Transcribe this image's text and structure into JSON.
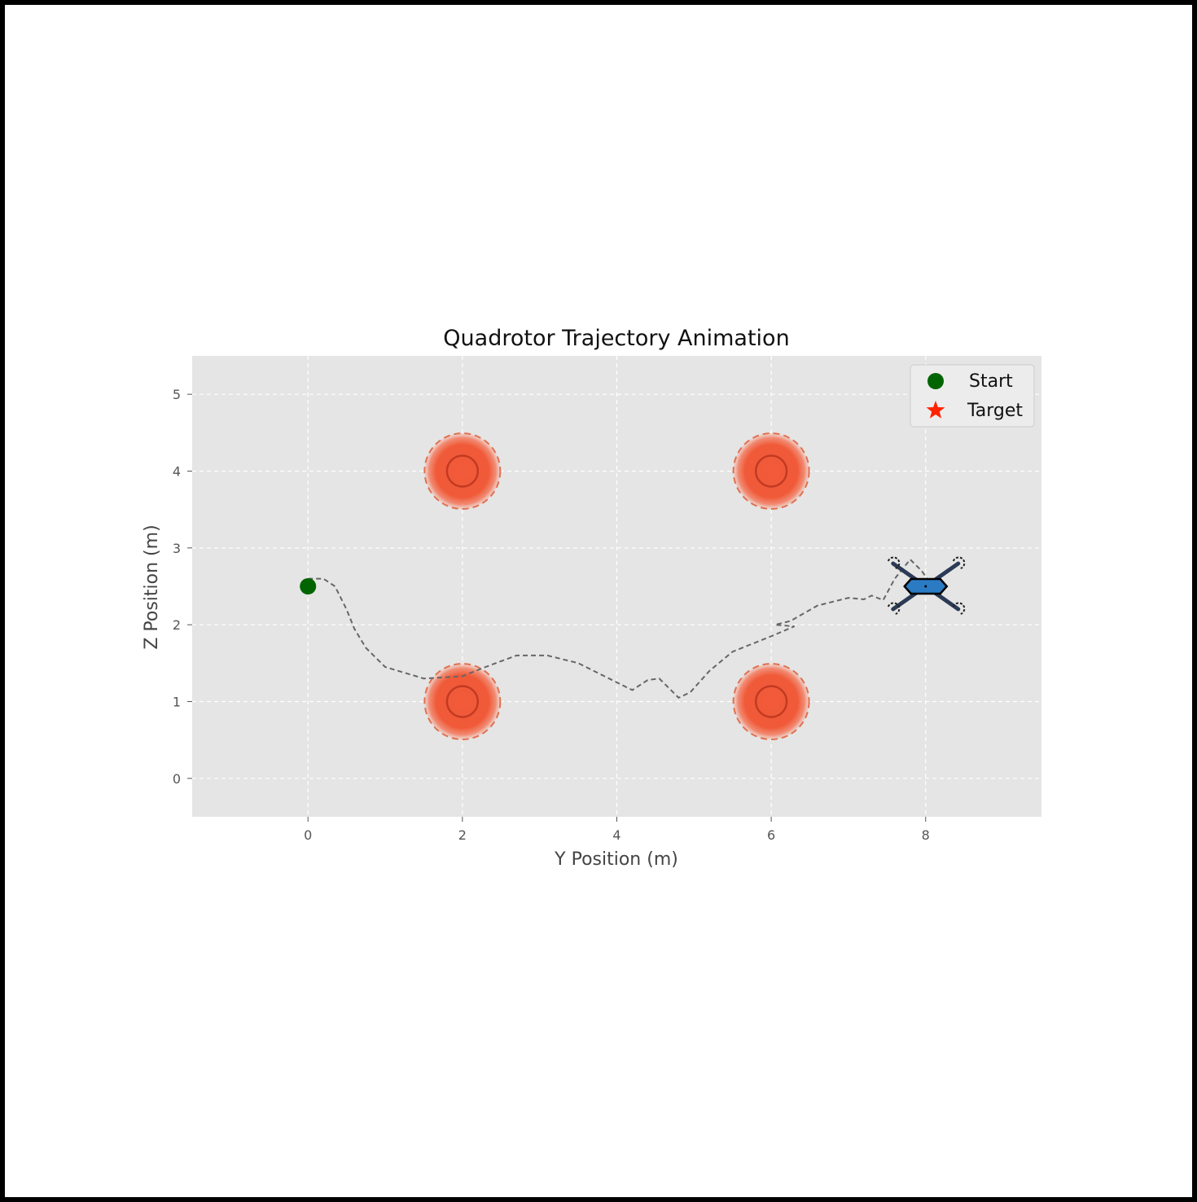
{
  "chart_data": {
    "type": "scatter",
    "title": "Quadrotor Trajectory Animation",
    "xlabel": "Y Position (m)",
    "ylabel": "Z Position (m)",
    "xlim": [
      -1.5,
      9.5
    ],
    "ylim": [
      -0.5,
      5.5
    ],
    "xticks": [
      0,
      2,
      4,
      6,
      8
    ],
    "yticks": [
      0,
      1,
      2,
      3,
      4,
      5
    ],
    "grid": true,
    "grid_style": "dashed",
    "legend_position": "upper right",
    "legend": [
      {
        "label": "Start",
        "marker": "circle",
        "color": "#006400"
      },
      {
        "label": "Target",
        "marker": "star",
        "color": "#ff2200"
      }
    ],
    "start": {
      "x": 0,
      "y": 2.5
    },
    "obstacles": [
      {
        "x": 2,
        "y": 4,
        "radius": 0.5
      },
      {
        "x": 6,
        "y": 4,
        "radius": 0.5
      },
      {
        "x": 2,
        "y": 1,
        "radius": 0.5
      },
      {
        "x": 6,
        "y": 1,
        "radius": 0.5
      }
    ],
    "trajectory": {
      "x": [
        0,
        0.2,
        0.35,
        0.5,
        0.6,
        0.75,
        1.0,
        1.5,
        2.0,
        2.3,
        2.7,
        3.1,
        3.5,
        3.9,
        4.2,
        4.4,
        4.55,
        4.65,
        4.8,
        4.95,
        5.2,
        5.5,
        6.0,
        6.3,
        6.05,
        6.25,
        6.6,
        7.0,
        7.2,
        7.3,
        7.45,
        7.6,
        7.8,
        7.95,
        8.05
      ],
      "y": [
        2.6,
        2.6,
        2.5,
        2.2,
        1.95,
        1.7,
        1.45,
        1.3,
        1.33,
        1.45,
        1.6,
        1.6,
        1.5,
        1.3,
        1.15,
        1.28,
        1.3,
        1.2,
        1.05,
        1.12,
        1.4,
        1.65,
        1.85,
        1.98,
        2.0,
        2.05,
        2.25,
        2.35,
        2.33,
        2.38,
        2.32,
        2.6,
        2.85,
        2.7,
        2.55
      ]
    },
    "quadrotor": {
      "x": 8.0,
      "y": 2.5,
      "body_color": "#2a7bc4",
      "arm_color": "#2b3a55"
    },
    "obstacle_color": "#f05030",
    "trajectory_color": "#666666",
    "axes_background": "#e5e5e5"
  }
}
